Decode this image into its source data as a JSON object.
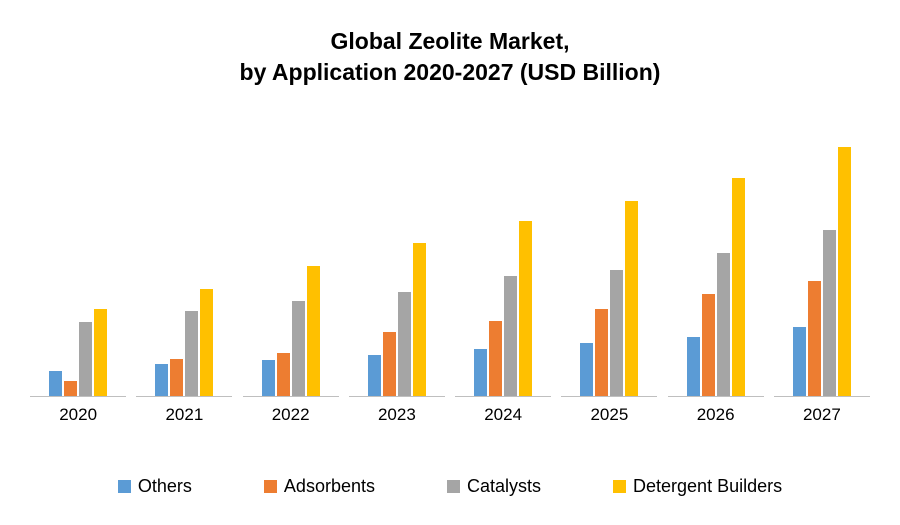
{
  "title": {
    "line1": "Global Zeolite Market,",
    "line2": "by Application 2020-2027 (USD Billion)"
  },
  "chart_data": {
    "type": "bar",
    "title": "Global Zeolite Market, by Application 2020-2027 (USD Billion)",
    "xlabel": "",
    "ylabel": "USD Billion",
    "ylim": [
      0,
      5.5
    ],
    "grid": false,
    "legend_position": "bottom",
    "categories": [
      "2020",
      "2021",
      "2022",
      "2023",
      "2024",
      "2025",
      "2026",
      "2027"
    ],
    "series": [
      {
        "name": "Others",
        "color": "#5B9BD5",
        "values": [
          0.5,
          0.62,
          0.7,
          0.8,
          0.92,
          1.05,
          1.15,
          1.35
        ]
      },
      {
        "name": "Adsorbents",
        "color": "#ED7D31",
        "values": [
          0.3,
          0.72,
          0.85,
          1.26,
          1.48,
          1.7,
          2.0,
          2.25
        ]
      },
      {
        "name": "Catalysts",
        "color": "#A5A5A5",
        "values": [
          1.45,
          1.67,
          1.86,
          2.05,
          2.35,
          2.48,
          2.8,
          3.27
        ]
      },
      {
        "name": "Detergent Builders",
        "color": "#FFC000",
        "values": [
          1.7,
          2.1,
          2.56,
          3.0,
          3.43,
          3.83,
          4.29,
          4.9
        ]
      }
    ]
  },
  "colors": {
    "axis_line": "#bfbfbf",
    "background": "#ffffff",
    "text": "#000000"
  }
}
